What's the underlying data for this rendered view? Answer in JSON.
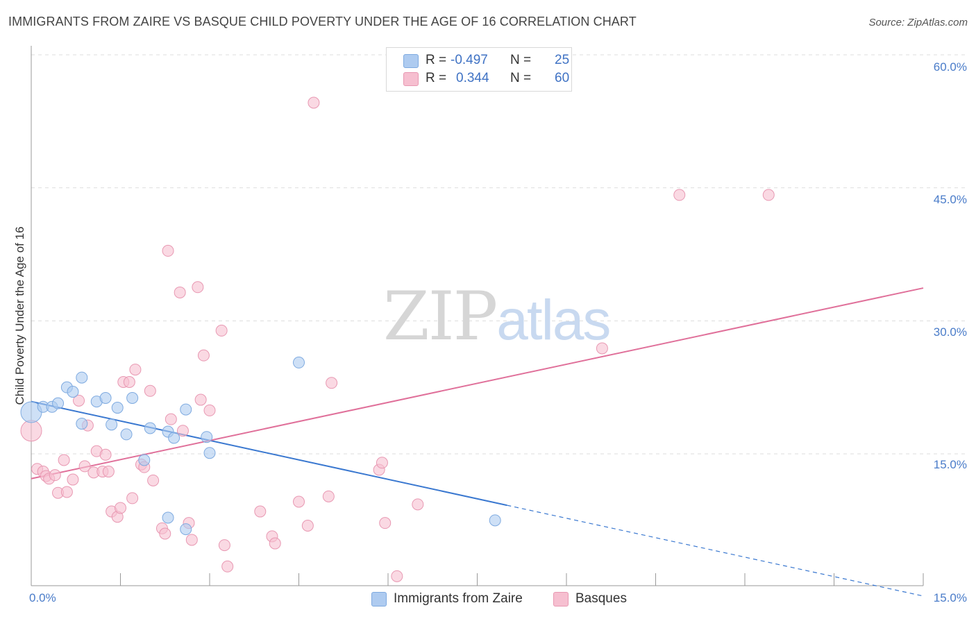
{
  "title": "IMMIGRANTS FROM ZAIRE VS BASQUE CHILD POVERTY UNDER THE AGE OF 16 CORRELATION CHART",
  "source": "Source: ZipAtlas.com",
  "watermark": {
    "zip": "ZIP",
    "atlas": "atlas"
  },
  "legend": {
    "rows": [
      {
        "r_label": "R =",
        "r_value": "-0.497",
        "n_label": "N =",
        "n_value": "25"
      },
      {
        "r_label": "R =",
        "r_value": "0.344",
        "n_label": "N =",
        "n_value": "60"
      }
    ]
  },
  "bottom_legend": [
    "Immigrants from Zaire",
    "Basques"
  ],
  "colors": {
    "blue_fill": "#aecbf0",
    "blue_stroke": "#7eaae0",
    "blue_line": "#3a78d0",
    "pink_fill": "#f6bfd0",
    "pink_stroke": "#e898b2",
    "pink_line": "#e0709a",
    "grid": "#dddddd",
    "tick_text": "#4a7cc9"
  },
  "chart_data": {
    "type": "scatter",
    "title": "IMMIGRANTS FROM ZAIRE VS BASQUE CHILD POVERTY UNDER THE AGE OF 16 CORRELATION CHART",
    "xlabel": "",
    "ylabel": "Child Poverty Under the Age of 16",
    "xlim": [
      0,
      15
    ],
    "ylim": [
      0,
      60
    ],
    "x_tick_labels": [
      "0.0%",
      "15.0%"
    ],
    "y_tick_labels": [
      "15.0%",
      "30.0%",
      "45.0%",
      "60.0%"
    ],
    "y_ticks": [
      15,
      30,
      45,
      60
    ],
    "grid": true,
    "legend_position": "top-center",
    "series": [
      {
        "name": "Immigrants from Zaire",
        "color": "#aecbf0",
        "r": -0.497,
        "n": 25,
        "points": [
          [
            0.0,
            19.7
          ],
          [
            0.2,
            20.3
          ],
          [
            0.35,
            20.3
          ],
          [
            0.45,
            20.7
          ],
          [
            0.6,
            22.5
          ],
          [
            0.7,
            22.0
          ],
          [
            0.85,
            23.6
          ],
          [
            0.85,
            18.4
          ],
          [
            1.1,
            20.9
          ],
          [
            1.25,
            21.3
          ],
          [
            1.35,
            18.3
          ],
          [
            1.45,
            20.2
          ],
          [
            1.6,
            17.2
          ],
          [
            1.7,
            21.3
          ],
          [
            1.9,
            14.3
          ],
          [
            2.0,
            17.9
          ],
          [
            2.3,
            7.8
          ],
          [
            2.3,
            17.5
          ],
          [
            2.4,
            16.8
          ],
          [
            2.6,
            6.5
          ],
          [
            2.6,
            20.0
          ],
          [
            2.95,
            16.9
          ],
          [
            3.0,
            15.1
          ],
          [
            4.5,
            25.3
          ],
          [
            7.8,
            7.5
          ]
        ],
        "trend": {
          "x0": 0.0,
          "y0": 20.9,
          "x1": 8.0,
          "y1": 9.2,
          "dashed_to_x": 15.0
        }
      },
      {
        "name": "Basques",
        "color": "#f6bfd0",
        "r": 0.344,
        "n": 60,
        "points": [
          [
            0.0,
            17.6
          ],
          [
            0.1,
            13.3
          ],
          [
            0.2,
            13.0
          ],
          [
            0.25,
            12.5
          ],
          [
            0.3,
            12.2
          ],
          [
            0.4,
            12.6
          ],
          [
            0.45,
            10.6
          ],
          [
            0.55,
            14.3
          ],
          [
            0.6,
            10.7
          ],
          [
            0.7,
            12.1
          ],
          [
            0.8,
            21.0
          ],
          [
            0.9,
            13.6
          ],
          [
            0.95,
            18.2
          ],
          [
            1.05,
            12.9
          ],
          [
            1.1,
            15.3
          ],
          [
            1.2,
            13.0
          ],
          [
            1.25,
            14.9
          ],
          [
            1.3,
            13.0
          ],
          [
            1.35,
            8.5
          ],
          [
            1.45,
            7.9
          ],
          [
            1.5,
            8.9
          ],
          [
            1.55,
            23.1
          ],
          [
            1.65,
            23.1
          ],
          [
            1.7,
            10.0
          ],
          [
            1.75,
            24.5
          ],
          [
            1.85,
            13.8
          ],
          [
            1.9,
            13.5
          ],
          [
            2.0,
            22.1
          ],
          [
            2.05,
            12.0
          ],
          [
            2.2,
            6.6
          ],
          [
            2.25,
            6.0
          ],
          [
            2.3,
            37.9
          ],
          [
            2.35,
            18.9
          ],
          [
            2.5,
            33.2
          ],
          [
            2.55,
            17.6
          ],
          [
            2.65,
            7.2
          ],
          [
            2.7,
            5.3
          ],
          [
            2.8,
            33.8
          ],
          [
            2.85,
            21.1
          ],
          [
            2.9,
            26.1
          ],
          [
            3.0,
            19.9
          ],
          [
            3.2,
            28.9
          ],
          [
            3.25,
            4.7
          ],
          [
            3.3,
            2.3
          ],
          [
            3.85,
            8.5
          ],
          [
            4.05,
            5.7
          ],
          [
            4.1,
            4.9
          ],
          [
            4.5,
            9.6
          ],
          [
            4.65,
            6.9
          ],
          [
            4.75,
            54.6
          ],
          [
            5.0,
            10.2
          ],
          [
            5.05,
            23.0
          ],
          [
            5.85,
            13.2
          ],
          [
            5.9,
            14.0
          ],
          [
            5.95,
            7.2
          ],
          [
            6.15,
            1.2
          ],
          [
            6.5,
            9.3
          ],
          [
            9.6,
            26.9
          ],
          [
            10.9,
            44.2
          ],
          [
            12.4,
            44.2
          ]
        ],
        "trend": {
          "x0": 0.0,
          "y0": 12.2,
          "x1": 15.0,
          "y1": 33.7
        }
      }
    ]
  }
}
